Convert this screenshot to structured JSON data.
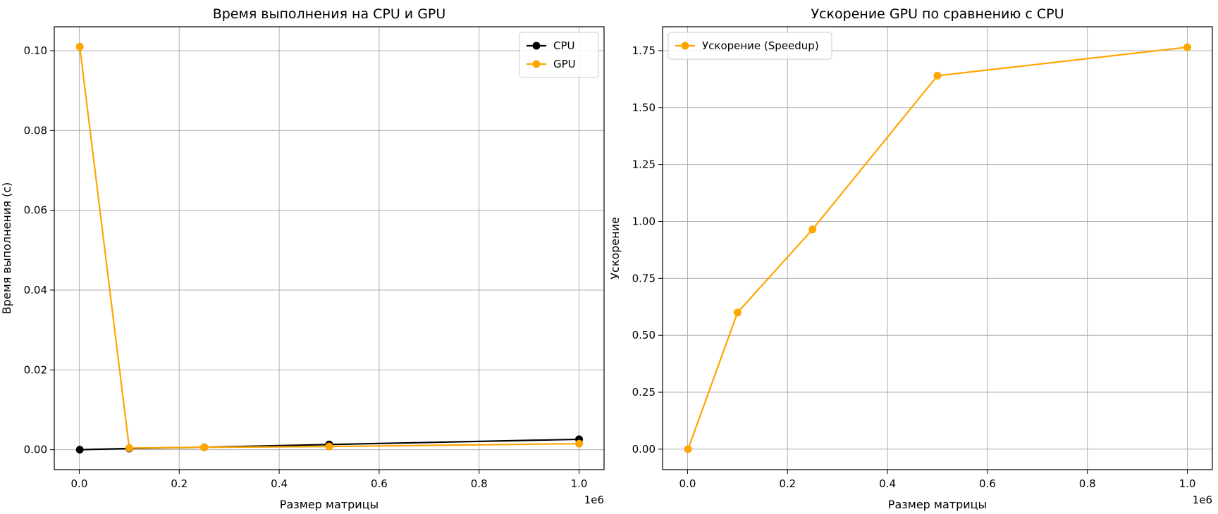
{
  "chart_data": [
    {
      "type": "line",
      "title": "Время выполнения на CPU и GPU",
      "xlabel": "Размер матрицы",
      "ylabel": "Время выполнения (с)",
      "x_offset_label": "1e6",
      "x": [
        1000,
        100000,
        250000,
        500000,
        1000000
      ],
      "xlim": [
        -50000,
        1050000
      ],
      "ylim": [
        -0.005,
        0.106
      ],
      "xticks": [
        0,
        200000,
        400000,
        600000,
        800000,
        1000000
      ],
      "xtick_labels": [
        "0.0",
        "0.2",
        "0.4",
        "0.6",
        "0.8",
        "1.0"
      ],
      "yticks": [
        0,
        0.02,
        0.04,
        0.06,
        0.08,
        0.1
      ],
      "ytick_labels": [
        "0.00",
        "0.02",
        "0.04",
        "0.06",
        "0.08",
        "0.10"
      ],
      "grid": true,
      "legend": "top-right",
      "series": [
        {
          "name": "CPU",
          "color": "#000000",
          "values": [
            0.0,
            0.0003,
            0.0006,
            0.0013,
            0.0026
          ]
        },
        {
          "name": "GPU",
          "color": "#FFA500",
          "values": [
            0.101,
            0.0004,
            0.0006,
            0.0008,
            0.0015
          ]
        }
      ]
    },
    {
      "type": "line",
      "title": "Ускорение GPU по сравнению с CPU",
      "xlabel": "Размер матрицы",
      "ylabel": "Ускорение",
      "x_offset_label": "1e6",
      "x": [
        1000,
        100000,
        250000,
        500000,
        1000000
      ],
      "xlim": [
        -50000,
        1050000
      ],
      "ylim": [
        -0.09,
        1.855
      ],
      "xticks": [
        0,
        200000,
        400000,
        600000,
        800000,
        1000000
      ],
      "xtick_labels": [
        "0.0",
        "0.2",
        "0.4",
        "0.6",
        "0.8",
        "1.0"
      ],
      "yticks": [
        0,
        0.25,
        0.5,
        0.75,
        1.0,
        1.25,
        1.5,
        1.75
      ],
      "ytick_labels": [
        "0.00",
        "0.25",
        "0.50",
        "0.75",
        "1.00",
        "1.25",
        "1.50",
        "1.75"
      ],
      "grid": true,
      "legend": "top-left",
      "series": [
        {
          "name": "Ускорение (Speedup)",
          "color": "#FFA500",
          "values": [
            0.0,
            0.6,
            0.965,
            1.64,
            1.765
          ]
        }
      ]
    }
  ]
}
